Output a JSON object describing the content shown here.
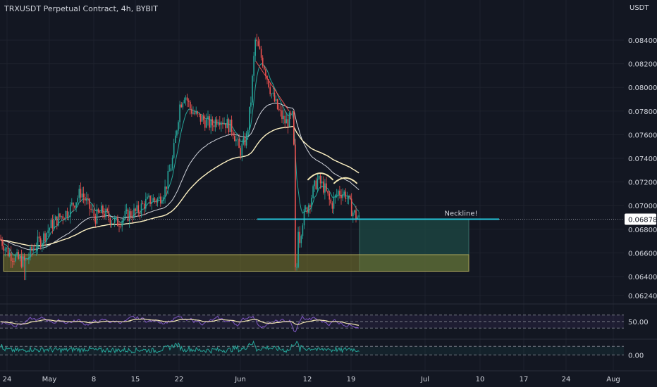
{
  "header": {
    "title": "TRXUSDT Perpetual Contract, 4h, BYBIT",
    "currency": "USDT"
  },
  "colors": {
    "background": "#131722",
    "up": "#26a69a",
    "down": "#ef5350",
    "ema_fast": "#26a69a",
    "ema_mid": "#d1d4dc",
    "ema_slow": "#fff3c4",
    "neckline": "#26c6da",
    "zone": "#7d7a2e",
    "target": "#1e4a44",
    "rsi": "#7e57c2",
    "rsi_ma": "#f2e6b3",
    "osc": "#26a69a"
  },
  "chart_data": {
    "type": "candlestick",
    "main": {
      "y_ticks": [
        "0.08400",
        "0.08200",
        "0.08000",
        "0.07800",
        "0.07600",
        "0.07400",
        "0.07200",
        "0.07000",
        "0.06800",
        "0.06600",
        "0.06400",
        "0.06240"
      ],
      "ylim": [
        0.0618,
        0.0865
      ],
      "current_price": "0.06878",
      "path": [
        [
          0,
          0.0672
        ],
        [
          12,
          0.066
        ],
        [
          24,
          0.0655
        ],
        [
          36,
          0.0652
        ],
        [
          48,
          0.0665
        ],
        [
          60,
          0.0672
        ],
        [
          72,
          0.0683
        ],
        [
          84,
          0.069
        ],
        [
          96,
          0.0695
        ],
        [
          108,
          0.0705
        ],
        [
          115,
          0.0712
        ],
        [
          125,
          0.07
        ],
        [
          135,
          0.069
        ],
        [
          145,
          0.0695
        ],
        [
          155,
          0.069
        ],
        [
          165,
          0.0685
        ],
        [
          175,
          0.069
        ],
        [
          185,
          0.0693
        ],
        [
          195,
          0.0695
        ],
        [
          205,
          0.0702
        ],
        [
          215,
          0.0705
        ],
        [
          225,
          0.0705
        ],
        [
          235,
          0.0715
        ],
        [
          245,
          0.074
        ],
        [
          255,
          0.0785
        ],
        [
          262,
          0.0795
        ],
        [
          270,
          0.0782
        ],
        [
          280,
          0.0775
        ],
        [
          290,
          0.0772
        ],
        [
          300,
          0.0768
        ],
        [
          310,
          0.0775
        ],
        [
          320,
          0.077
        ],
        [
          330,
          0.0765
        ],
        [
          340,
          0.0745
        ],
        [
          350,
          0.0758
        ],
        [
          356,
          0.079
        ],
        [
          362,
          0.084
        ],
        [
          368,
          0.083
        ],
        [
          375,
          0.0818
        ],
        [
          385,
          0.0795
        ],
        [
          395,
          0.078
        ],
        [
          405,
          0.077
        ],
        [
          415,
          0.0775
        ],
        [
          420,
          0.07
        ],
        [
          425,
          0.0672
        ],
        [
          430,
          0.069
        ],
        [
          440,
          0.0705
        ],
        [
          450,
          0.0722
        ],
        [
          460,
          0.0715
        ],
        [
          470,
          0.07
        ],
        [
          480,
          0.0712
        ],
        [
          490,
          0.071
        ],
        [
          500,
          0.0695
        ],
        [
          510,
          0.0688
        ]
      ],
      "zone": {
        "from_x": 5,
        "to_x": 665,
        "top": 0.06585,
        "bottom": 0.06445
      },
      "target_box": {
        "from_x": 510,
        "to_x": 665,
        "top": 0.06885,
        "bottom": 0.06445
      },
      "neckline": {
        "from_x": 365,
        "to_x": 708,
        "price": 0.06885,
        "label": "Neckline!"
      },
      "shoulders": [
        {
          "from_x": 437,
          "to_x": 472,
          "base": 0.0722,
          "peak": 0.0727
        },
        {
          "from_x": 474,
          "to_x": 506,
          "base": 0.0719,
          "peak": 0.0722
        }
      ],
      "trendline": [
        [
          363,
          0.0822
        ],
        [
          410,
          0.078
        ]
      ]
    },
    "rsi": {
      "y_tick": "50.00",
      "ylim": [
        0,
        100
      ],
      "band_upper": 70,
      "band_lower": 30,
      "value": 50
    },
    "oscillator": {
      "y_tick": "0.00",
      "ylim": [
        -1,
        1
      ],
      "band_level": 0.6,
      "value": 0
    },
    "x_ticks": [
      {
        "label": "24",
        "x": 10
      },
      {
        "label": "May",
        "x": 70
      },
      {
        "label": "8",
        "x": 133
      },
      {
        "label": "15",
        "x": 192
      },
      {
        "label": "22",
        "x": 254
      },
      {
        "label": "Jun",
        "x": 341
      },
      {
        "label": "12",
        "x": 436
      },
      {
        "label": "19",
        "x": 498
      },
      {
        "label": "Jul",
        "x": 603
      },
      {
        "label": "10",
        "x": 681
      },
      {
        "label": "17",
        "x": 743
      },
      {
        "label": "24",
        "x": 803
      },
      {
        "label": "Aug",
        "x": 870
      }
    ]
  }
}
